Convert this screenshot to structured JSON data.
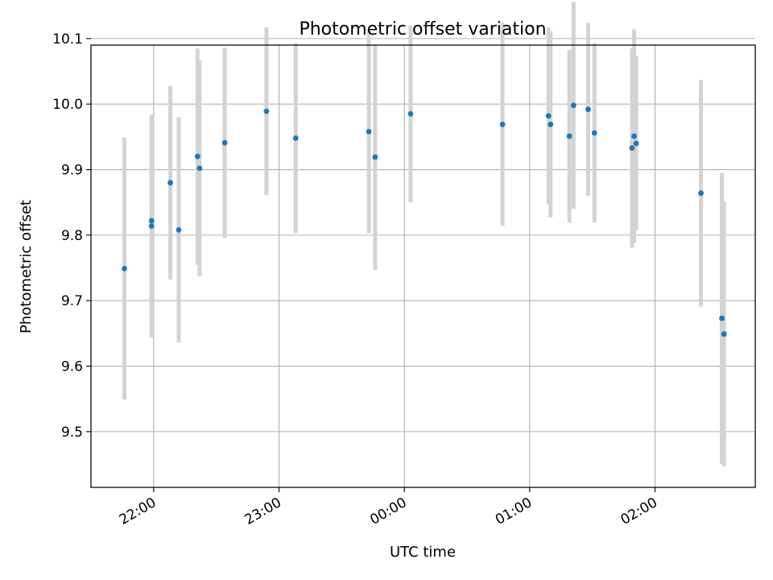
{
  "chart_data": {
    "type": "scatter",
    "title": "Photometric offset variation",
    "xlabel": "UTC time",
    "ylabel": "Photometric offset",
    "x_tick_labels": [
      "22:00",
      "23:00",
      "00:00",
      "01:00",
      "02:00"
    ],
    "y_tick_labels": [
      "9.5",
      "9.6",
      "9.7",
      "9.8",
      "9.9",
      "10.0",
      "10.1"
    ],
    "y_ticks": [
      9.5,
      9.6,
      9.7,
      9.8,
      9.9,
      10.0,
      10.1
    ],
    "ylim": [
      9.415,
      10.09
    ],
    "xlim": [
      "21:30",
      "02:48"
    ],
    "grid": true,
    "colors": {
      "marker": "#1f77b4",
      "errorbar": "#d3d3d3",
      "grid": "#b0b0b0"
    },
    "series": [
      {
        "points": [
          {
            "x": "21:46",
            "y": 9.749,
            "err": 0.2
          },
          {
            "x": "21:59",
            "y": 9.822,
            "err": 0.16
          },
          {
            "x": "21:59",
            "y": 9.814,
            "err": 0.17
          },
          {
            "x": "22:08",
            "y": 9.88,
            "err": 0.148
          },
          {
            "x": "22:12",
            "y": 9.808,
            "err": 0.172
          },
          {
            "x": "22:21",
            "y": 9.92,
            "err": 0.165
          },
          {
            "x": "22:22",
            "y": 9.902,
            "err": 0.165
          },
          {
            "x": "22:34",
            "y": 9.941,
            "err": 0.145
          },
          {
            "x": "22:54",
            "y": 9.989,
            "err": 0.128
          },
          {
            "x": "23:08",
            "y": 9.948,
            "err": 0.145
          },
          {
            "x": "23:43",
            "y": 9.958,
            "err": 0.155
          },
          {
            "x": "23:46",
            "y": 9.919,
            "err": 0.172
          },
          {
            "x": "00:03",
            "y": 9.985,
            "err": 0.135
          },
          {
            "x": "00:47",
            "y": 9.969,
            "err": 0.155
          },
          {
            "x": "01:09",
            "y": 9.982,
            "err": 0.135
          },
          {
            "x": "01:10",
            "y": 9.969,
            "err": 0.142
          },
          {
            "x": "01:19",
            "y": 9.951,
            "err": 0.132
          },
          {
            "x": "01:21",
            "y": 9.998,
            "err": 0.158
          },
          {
            "x": "01:28",
            "y": 9.992,
            "err": 0.132
          },
          {
            "x": "01:31",
            "y": 9.956,
            "err": 0.137
          },
          {
            "x": "01:49",
            "y": 9.933,
            "err": 0.152
          },
          {
            "x": "01:50",
            "y": 9.951,
            "err": 0.163
          },
          {
            "x": "01:51",
            "y": 9.94,
            "err": 0.133
          },
          {
            "x": "02:22",
            "y": 9.864,
            "err": 0.173
          },
          {
            "x": "02:32",
            "y": 9.673,
            "err": 0.222
          },
          {
            "x": "02:33",
            "y": 9.649,
            "err": 0.202
          }
        ]
      }
    ]
  }
}
